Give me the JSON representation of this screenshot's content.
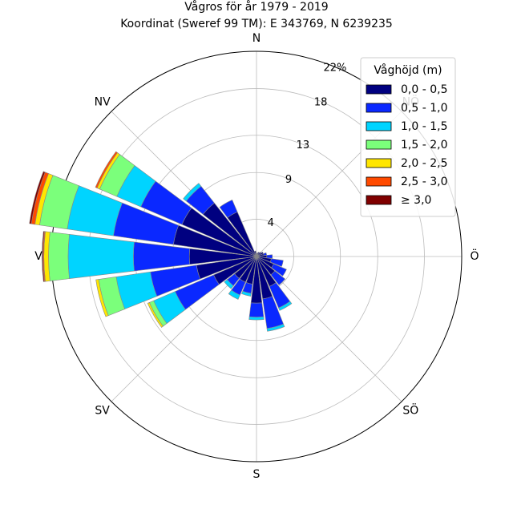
{
  "chart_data": {
    "type": "windrose",
    "title": "Vågros för år 1979 - 2019",
    "subtitle": "Koordinat (Sweref 99 TM): E 343769, N 6239235",
    "direction_labels": [
      {
        "label": "N",
        "angle": 0
      },
      {
        "label": "NÖ",
        "angle": 45
      },
      {
        "label": "Ö",
        "angle": 90
      },
      {
        "label": "SÖ",
        "angle": 135
      },
      {
        "label": "S",
        "angle": 180
      },
      {
        "label": "SV",
        "angle": 225
      },
      {
        "label": "V",
        "angle": 270
      },
      {
        "label": "NV",
        "angle": 315
      }
    ],
    "radial_unit": "%",
    "rmax": 22,
    "radial_ticks": [
      {
        "value": 4,
        "label": "4"
      },
      {
        "value": 9,
        "label": "9"
      },
      {
        "value": 13,
        "label": "13"
      },
      {
        "value": 18,
        "label": "18"
      },
      {
        "value": 22,
        "label": "22%"
      }
    ],
    "legend": {
      "title": "Våghöjd (m)",
      "position": "top-right",
      "bins": [
        {
          "label": "0,0 - 0,5",
          "color": "#000080"
        },
        {
          "label": "0,5 - 1,0",
          "color": "#0a28ff"
        },
        {
          "label": "1,0 - 1,5",
          "color": "#00d4ff"
        },
        {
          "label": "1,5 - 2,0",
          "color": "#7bff7b"
        },
        {
          "label": "2,0 - 2,5",
          "color": "#ffe600"
        },
        {
          "label": "2,5 - 3,0",
          "color": "#ff4a00"
        },
        {
          "label": "≥ 3,0",
          "color": "#800000"
        }
      ]
    },
    "sector_width_deg": 15,
    "sectors": [
      {
        "direction": 0,
        "cumulative": [
          0.2
        ]
      },
      {
        "direction": 15,
        "cumulative": [
          0.4
        ]
      },
      {
        "direction": 30,
        "cumulative": [
          0.5
        ]
      },
      {
        "direction": 45,
        "cumulative": [
          0.6
        ]
      },
      {
        "direction": 60,
        "cumulative": [
          0.8
        ]
      },
      {
        "direction": 75,
        "cumulative": [
          0.8,
          1.1
        ]
      },
      {
        "direction": 90,
        "cumulative": [
          1.1,
          1.7
        ]
      },
      {
        "direction": 105,
        "cumulative": [
          1.6,
          2.9
        ]
      },
      {
        "direction": 120,
        "cumulative": [
          2.0,
          3.5
        ]
      },
      {
        "direction": 135,
        "cumulative": [
          2.5,
          3.9
        ]
      },
      {
        "direction": 150,
        "cumulative": [
          3.5,
          6.0,
          6.3
        ]
      },
      {
        "direction": 165,
        "cumulative": [
          4.6,
          7.8,
          8.1
        ]
      },
      {
        "direction": 180,
        "cumulative": [
          5.0,
          6.5,
          6.8
        ]
      },
      {
        "direction": 195,
        "cumulative": [
          3.0,
          4.0,
          4.3
        ]
      },
      {
        "direction": 210,
        "cumulative": [
          3.0,
          4.5,
          5.0
        ]
      },
      {
        "direction": 225,
        "cumulative": [
          3.0,
          4.0,
          4.4
        ]
      },
      {
        "direction": 240,
        "cumulative": [
          5.0,
          9.5,
          12.0,
          12.5,
          12.7
        ]
      },
      {
        "direction": 255,
        "cumulative": [
          6.5,
          11.5,
          15.2,
          17.1,
          17.4
        ]
      },
      {
        "direction": 270,
        "cumulative": [
          7.2,
          13.2,
          20.2,
          22.3,
          22.8,
          22.9,
          23.0
        ]
      },
      {
        "direction": 285,
        "cumulative": [
          9.0,
          15.5,
          20.5,
          23.5,
          24.0,
          24.4,
          24.6
        ]
      },
      {
        "direction": 300,
        "cumulative": [
          8.7,
          13.5,
          16.3,
          18.3,
          18.6,
          18.8
        ]
      },
      {
        "direction": 315,
        "cumulative": [
          7.3,
          9.6,
          10.0
        ]
      },
      {
        "direction": 330,
        "cumulative": [
          5.2,
          6.6
        ]
      },
      {
        "direction": 345,
        "cumulative": [
          0.6
        ]
      }
    ]
  }
}
